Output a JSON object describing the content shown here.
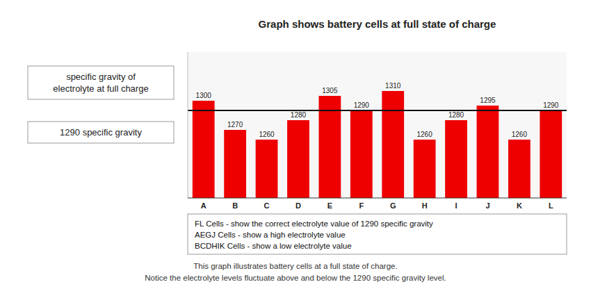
{
  "chart_data": {
    "type": "bar",
    "title": "Graph shows battery cells at full state of charge",
    "categories": [
      "A",
      "B",
      "C",
      "D",
      "E",
      "F",
      "G",
      "H",
      "I",
      "J",
      "K",
      "L"
    ],
    "values": [
      1300,
      1270,
      1260,
      1280,
      1305,
      1290,
      1310,
      1260,
      1280,
      1295,
      1260,
      1290
    ],
    "color": "#EE0000",
    "ylim": [
      1200,
      1350
    ],
    "reference_line": 1290,
    "data_labels": true,
    "tick_labels": "x",
    "grid": false,
    "annotations": [
      "specific gravity of\nelectrolyte at full charge",
      "1290 specific gravity"
    ],
    "notes": [
      "FL Cells   -  show the correct electrolyte value of 1290 specific gravity",
      "AEGJ Cells   -  show a high electrolyte value",
      "BCDHIK Cells   -  show a low electrolyte value"
    ],
    "caption": [
      "This graph illustrates battery cells at a full state of charge.",
      "Notice the electrolyte levels fluctuate above and below the 1290 specific gravity level."
    ]
  }
}
